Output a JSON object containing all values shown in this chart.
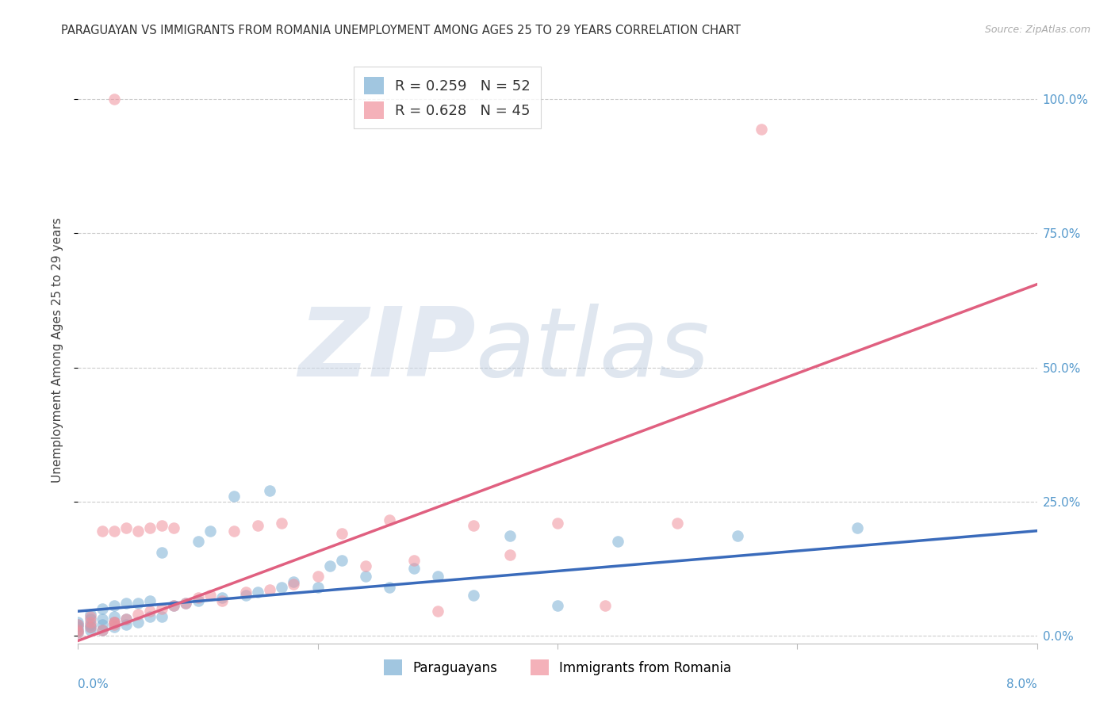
{
  "title": "PARAGUAYAN VS IMMIGRANTS FROM ROMANIA UNEMPLOYMENT AMONG AGES 25 TO 29 YEARS CORRELATION CHART",
  "source": "Source: ZipAtlas.com",
  "ylabel": "Unemployment Among Ages 25 to 29 years",
  "ytick_values": [
    0.0,
    0.25,
    0.5,
    0.75,
    1.0
  ],
  "ytick_labels": [
    "0.0%",
    "25.0%",
    "50.0%",
    "75.0%",
    "100.0%"
  ],
  "xlim": [
    0.0,
    0.08
  ],
  "ylim": [
    -0.015,
    1.08
  ],
  "R_paraguayan": 0.259,
  "N_paraguayan": 52,
  "R_romania": 0.628,
  "N_romania": 45,
  "paraguayan_color": "#7aafd4",
  "romania_color": "#f0909c",
  "paraguayan_line_color": "#3a6bbb",
  "romania_line_color": "#e06080",
  "par_line_x0": 0.0,
  "par_line_y0": 0.045,
  "par_line_x1": 0.08,
  "par_line_y1": 0.195,
  "rom_line_x0": 0.0,
  "rom_line_y0": -0.01,
  "rom_line_x1": 0.08,
  "rom_line_y1": 0.655,
  "paraguayan_x": [
    0.0,
    0.0,
    0.0,
    0.0,
    0.0,
    0.001,
    0.001,
    0.001,
    0.001,
    0.001,
    0.002,
    0.002,
    0.002,
    0.002,
    0.003,
    0.003,
    0.003,
    0.003,
    0.004,
    0.004,
    0.004,
    0.005,
    0.005,
    0.006,
    0.006,
    0.007,
    0.007,
    0.008,
    0.009,
    0.01,
    0.01,
    0.011,
    0.012,
    0.013,
    0.014,
    0.015,
    0.016,
    0.017,
    0.018,
    0.02,
    0.021,
    0.022,
    0.024,
    0.026,
    0.028,
    0.03,
    0.033,
    0.036,
    0.04,
    0.045,
    0.055,
    0.065
  ],
  "paraguayan_y": [
    0.005,
    0.01,
    0.015,
    0.02,
    0.025,
    0.01,
    0.015,
    0.02,
    0.03,
    0.04,
    0.01,
    0.02,
    0.03,
    0.05,
    0.015,
    0.025,
    0.035,
    0.055,
    0.02,
    0.03,
    0.06,
    0.025,
    0.06,
    0.035,
    0.065,
    0.035,
    0.155,
    0.055,
    0.06,
    0.065,
    0.175,
    0.195,
    0.07,
    0.26,
    0.075,
    0.08,
    0.27,
    0.09,
    0.1,
    0.09,
    0.13,
    0.14,
    0.11,
    0.09,
    0.125,
    0.11,
    0.075,
    0.185,
    0.055,
    0.175,
    0.185,
    0.2
  ],
  "romania_x": [
    0.0,
    0.0,
    0.0,
    0.001,
    0.001,
    0.001,
    0.002,
    0.002,
    0.003,
    0.003,
    0.003,
    0.004,
    0.004,
    0.005,
    0.005,
    0.006,
    0.006,
    0.007,
    0.007,
    0.008,
    0.008,
    0.009,
    0.01,
    0.011,
    0.012,
    0.013,
    0.014,
    0.015,
    0.016,
    0.017,
    0.018,
    0.02,
    0.022,
    0.024,
    0.026,
    0.028,
    0.03,
    0.033,
    0.036,
    0.04,
    0.044,
    0.05,
    0.057,
    0.003,
    0.003
  ],
  "romania_y": [
    0.005,
    0.01,
    0.02,
    0.015,
    0.025,
    0.035,
    0.01,
    0.195,
    0.02,
    0.195,
    0.025,
    0.03,
    0.2,
    0.04,
    0.195,
    0.045,
    0.2,
    0.05,
    0.205,
    0.055,
    0.2,
    0.06,
    0.07,
    0.075,
    0.065,
    0.195,
    0.08,
    0.205,
    0.085,
    0.21,
    0.095,
    0.11,
    0.19,
    0.13,
    0.215,
    0.14,
    0.045,
    0.205,
    0.15,
    0.21,
    0.055,
    0.21,
    0.945,
    1.0,
    0.025
  ],
  "watermark_zip": "ZIP",
  "watermark_atlas": "atlas",
  "background_color": "#ffffff",
  "grid_color": "#cccccc",
  "scatter_alpha": 0.55,
  "scatter_size": 110
}
